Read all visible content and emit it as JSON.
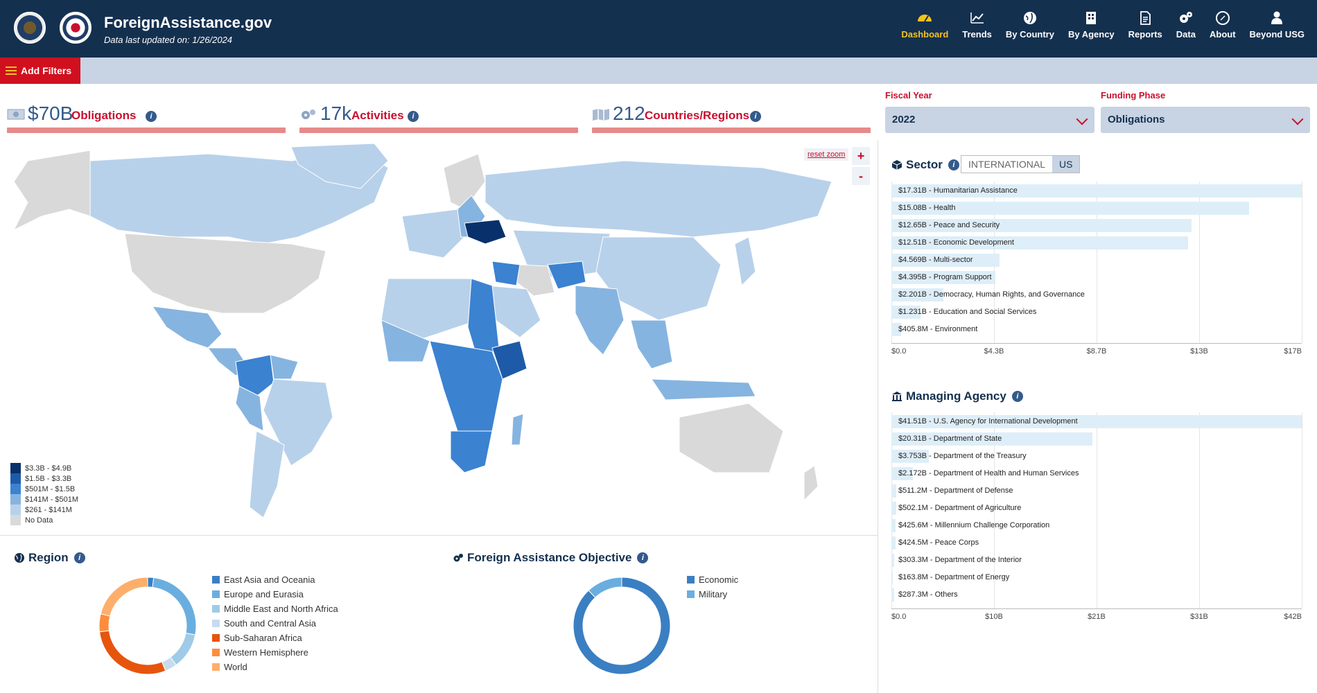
{
  "header": {
    "title": "ForeignAssistance.gov",
    "subtitle": "Data last updated on: 1/26/2024",
    "nav": [
      {
        "label": "Dashboard",
        "icon": "dashboard-icon",
        "active": true
      },
      {
        "label": "Trends",
        "icon": "trends-icon"
      },
      {
        "label": "By Country",
        "icon": "globe-icon"
      },
      {
        "label": "By Agency",
        "icon": "building-icon"
      },
      {
        "label": "Reports",
        "icon": "report-icon"
      },
      {
        "label": "Data",
        "icon": "gears-icon"
      },
      {
        "label": "About",
        "icon": "compass-icon"
      },
      {
        "label": "Beyond USG",
        "icon": "person-icon"
      }
    ]
  },
  "filters": {
    "button": "Add Filters"
  },
  "kpis": [
    {
      "value": "$70B",
      "label": "Obligations",
      "icon": "money-icon"
    },
    {
      "value": "17k",
      "label": "Activities",
      "icon": "gears-icon"
    },
    {
      "value": "212",
      "label": "Countries/Regions",
      "icon": "map-icon"
    }
  ],
  "selectors": {
    "fiscal_year": {
      "label": "Fiscal Year",
      "value": "2022"
    },
    "funding_phase": {
      "label": "Funding Phase",
      "value": "Obligations"
    }
  },
  "map": {
    "reset_zoom": "reset zoom",
    "zoom_in": "+",
    "zoom_out": "-",
    "legend": [
      {
        "label": "$3.3B - $4.9B",
        "color": "#08306b"
      },
      {
        "label": "$1.5B - $3.3B",
        "color": "#1d5ba8"
      },
      {
        "label": "$501M - $1.5B",
        "color": "#3b82d1"
      },
      {
        "label": "$141M - $501M",
        "color": "#86b4e0"
      },
      {
        "label": "$261 - $141M",
        "color": "#b8d1ea"
      },
      {
        "label": "No Data",
        "color": "#d9d9d9"
      }
    ]
  },
  "sector": {
    "title": "Sector",
    "toggle": [
      "INTERNATIONAL",
      "US"
    ],
    "chart_data": {
      "type": "bar",
      "categories": [
        "Humanitarian Assistance",
        "Health",
        "Peace and Security",
        "Economic Development",
        "Multi-sector",
        "Program Support",
        "Democracy, Human Rights, and Governance",
        "Education and Social Services",
        "Environment"
      ],
      "labels": [
        "$17.31B - Humanitarian Assistance",
        "$15.08B - Health",
        "$12.65B - Peace and Security",
        "$12.51B - Economic Development",
        "$4.569B - Multi-sector",
        "$4.395B - Program Support",
        "$2.201B - Democracy, Human Rights, and Governance",
        "$1.231B - Education and Social Services",
        "$405.8M - Environment"
      ],
      "values": [
        17.31,
        15.08,
        12.65,
        12.51,
        4.569,
        4.395,
        2.201,
        1.231,
        0.4058
      ],
      "ticks": [
        "$0.0",
        "$4.3B",
        "$8.7B",
        "$13B",
        "$17B"
      ],
      "xlim": [
        0,
        17.31
      ]
    }
  },
  "agency": {
    "title": "Managing Agency",
    "chart_data": {
      "type": "bar",
      "categories": [
        "U.S. Agency for International Development",
        "Department of State",
        "Department of the Treasury",
        "Department of Health and Human Services",
        "Department of Defense",
        "Department of Agriculture",
        "Millennium Challenge Corporation",
        "Peace Corps",
        "Department of the Interior",
        "Department of Energy",
        "Others"
      ],
      "labels": [
        "$41.51B - U.S. Agency for International Development",
        "$20.31B - Department of State",
        "$3.753B - Department of the Treasury",
        "$2.172B - Department of Health and Human Services",
        "$511.2M - Department of Defense",
        "$502.1M - Department of Agriculture",
        "$425.6M - Millennium Challenge Corporation",
        "$424.5M - Peace Corps",
        "$303.3M - Department of the Interior",
        "$163.8M - Department of Energy",
        "$287.3M - Others"
      ],
      "values": [
        41.51,
        20.31,
        3.753,
        2.172,
        0.5112,
        0.5021,
        0.4256,
        0.4245,
        0.3033,
        0.1638,
        0.2873
      ],
      "ticks": [
        "$0.0",
        "$10B",
        "$21B",
        "$31B",
        "$42B"
      ],
      "xlim": [
        0,
        41.51
      ]
    }
  },
  "region": {
    "title": "Region",
    "chart_data": {
      "type": "pie",
      "categories": [
        "East Asia and Oceania",
        "Europe and Eurasia",
        "Middle East and North Africa",
        "South and Central Asia",
        "Sub-Saharan Africa",
        "Western Hemisphere",
        "World"
      ],
      "values": [
        2,
        26,
        12,
        4,
        29,
        6,
        21
      ],
      "colors": [
        "#3a7fc2",
        "#6aaee0",
        "#9fcbe8",
        "#c6dbef",
        "#e6550d",
        "#fd8d3c",
        "#fdae6b"
      ]
    }
  },
  "objective": {
    "title": "Foreign Assistance Objective",
    "chart_data": {
      "type": "pie",
      "categories": [
        "Economic",
        "Military"
      ],
      "values": [
        88,
        12
      ],
      "colors": [
        "#3a7fc2",
        "#6aaee0"
      ]
    }
  }
}
